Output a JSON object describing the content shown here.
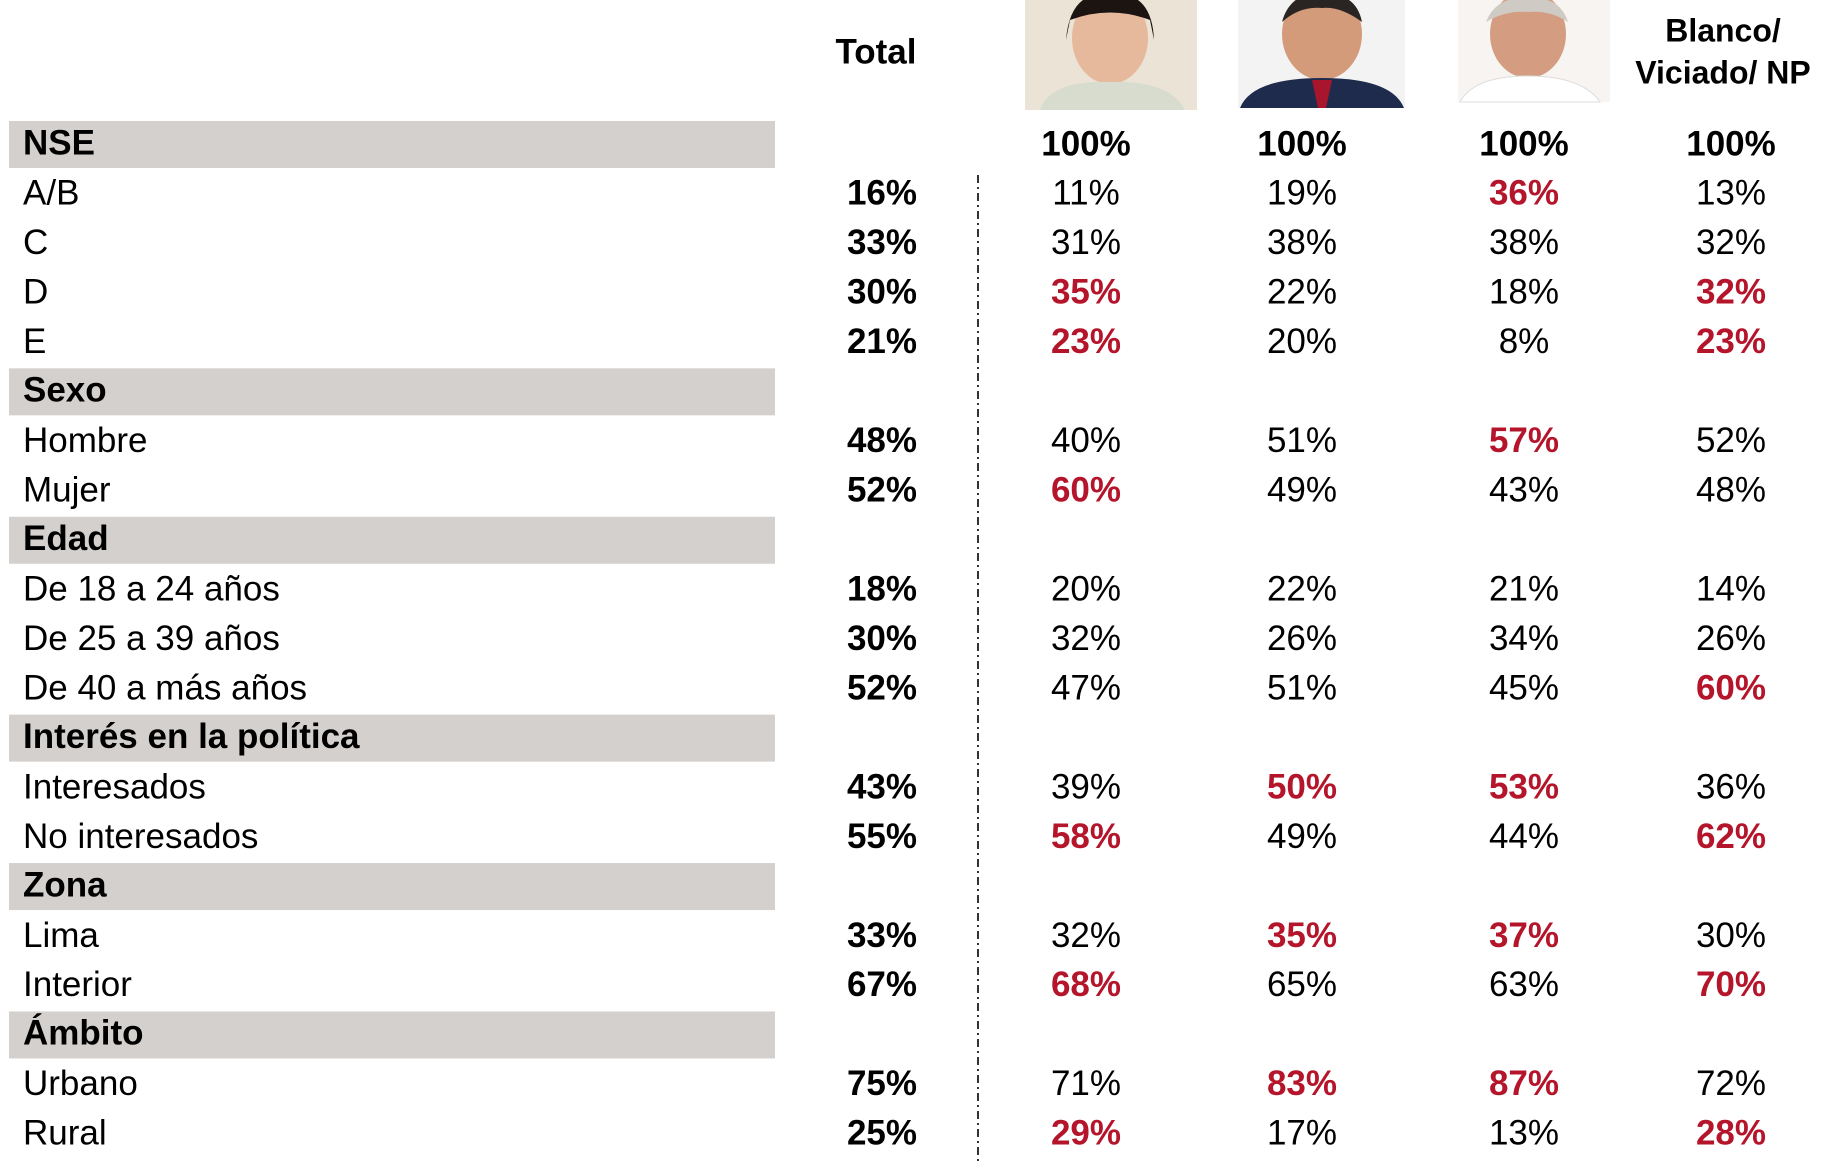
{
  "header": {
    "total": "Total",
    "other": [
      "Blanco/",
      "Viciado/ NP"
    ],
    "base": [
      "100%",
      "100%",
      "100%",
      "100%"
    ]
  },
  "highlight_color": "#b5152b",
  "sections": [
    {
      "title": "NSE",
      "rows": [
        {
          "label": "A/B",
          "total": "16%",
          "values": [
            "11%",
            "19%",
            "36%",
            "13%"
          ],
          "highlighted": [
            false,
            false,
            true,
            false
          ]
        },
        {
          "label": "C",
          "total": "33%",
          "values": [
            "31%",
            "38%",
            "38%",
            "32%"
          ],
          "highlighted": [
            false,
            false,
            false,
            false
          ]
        },
        {
          "label": "D",
          "total": "30%",
          "values": [
            "35%",
            "22%",
            "18%",
            "32%"
          ],
          "highlighted": [
            true,
            false,
            false,
            true
          ]
        },
        {
          "label": "E",
          "total": "21%",
          "values": [
            "23%",
            "20%",
            "8%",
            "23%"
          ],
          "highlighted": [
            true,
            false,
            false,
            true
          ]
        }
      ]
    },
    {
      "title": "Sexo",
      "rows": [
        {
          "label": "Hombre",
          "total": "48%",
          "values": [
            "40%",
            "51%",
            "57%",
            "52%"
          ],
          "highlighted": [
            false,
            false,
            true,
            false
          ]
        },
        {
          "label": "Mujer",
          "total": "52%",
          "values": [
            "60%",
            "49%",
            "43%",
            "48%"
          ],
          "highlighted": [
            true,
            false,
            false,
            false
          ]
        }
      ]
    },
    {
      "title": "Edad",
      "rows": [
        {
          "label": "De 18 a 24 años",
          "total": "18%",
          "values": [
            "20%",
            "22%",
            "21%",
            "14%"
          ],
          "highlighted": [
            false,
            false,
            false,
            false
          ]
        },
        {
          "label": "De 25 a 39 años",
          "total": "30%",
          "values": [
            "32%",
            "26%",
            "34%",
            "26%"
          ],
          "highlighted": [
            false,
            false,
            false,
            false
          ]
        },
        {
          "label": "De 40 a más años",
          "total": "52%",
          "values": [
            "47%",
            "51%",
            "45%",
            "60%"
          ],
          "highlighted": [
            false,
            false,
            false,
            true
          ]
        }
      ]
    },
    {
      "title": "Interés en la política",
      "rows": [
        {
          "label": "Interesados",
          "total": "43%",
          "values": [
            "39%",
            "50%",
            "53%",
            "36%"
          ],
          "highlighted": [
            false,
            true,
            true,
            false
          ]
        },
        {
          "label": "No interesados",
          "total": "55%",
          "values": [
            "58%",
            "49%",
            "44%",
            "62%"
          ],
          "highlighted": [
            true,
            false,
            false,
            true
          ]
        }
      ]
    },
    {
      "title": "Zona",
      "rows": [
        {
          "label": "Lima",
          "total": "33%",
          "values": [
            "32%",
            "35%",
            "37%",
            "30%"
          ],
          "highlighted": [
            false,
            true,
            true,
            false
          ]
        },
        {
          "label": "Interior",
          "total": "67%",
          "values": [
            "68%",
            "65%",
            "63%",
            "70%"
          ],
          "highlighted": [
            true,
            false,
            false,
            true
          ]
        }
      ]
    },
    {
      "title": "Ámbito",
      "rows": [
        {
          "label": "Urbano",
          "total": "75%",
          "values": [
            "71%",
            "83%",
            "87%",
            "72%"
          ],
          "highlighted": [
            false,
            true,
            true,
            false
          ]
        },
        {
          "label": "Rural",
          "total": "25%",
          "values": [
            "29%",
            "17%",
            "13%",
            "28%"
          ],
          "highlighted": [
            true,
            false,
            false,
            true
          ]
        }
      ]
    }
  ]
}
